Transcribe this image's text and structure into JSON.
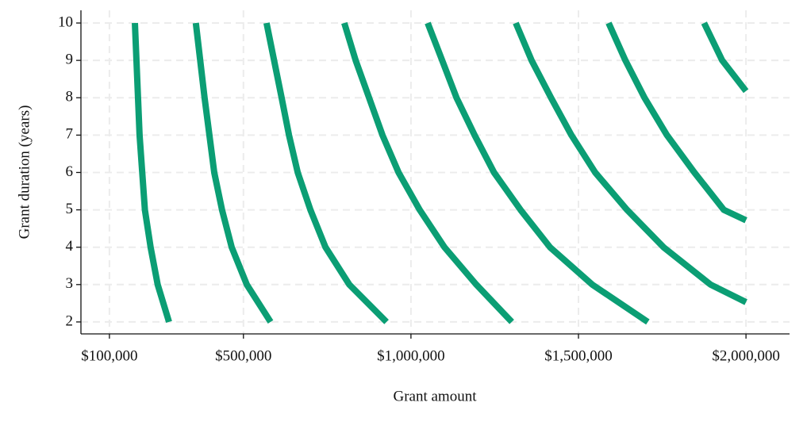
{
  "chart_data": {
    "type": "line",
    "x_label": "Grant amount",
    "y_label": "Grant duration (years)",
    "xlim": [
      15000,
      2130000
    ],
    "ylim": [
      1.68,
      10.34
    ],
    "xticks": [
      {
        "value": 100000,
        "label": "$100,000"
      },
      {
        "value": 500000,
        "label": "$500,000"
      },
      {
        "value": 1000000,
        "label": "$1,000,000"
      },
      {
        "value": 1500000,
        "label": "$1,500,000"
      },
      {
        "value": 2000000,
        "label": "$2,000,000"
      }
    ],
    "yticks": [
      2,
      3,
      4,
      5,
      6,
      7,
      8,
      9,
      10
    ],
    "grid": true,
    "series": [
      {
        "color": "#0b9e74",
        "x": [
          176000,
          190000,
          206000,
          223000,
          244000,
          278000
        ],
        "values": [
          10,
          7,
          5,
          4,
          3,
          2
        ]
      },
      {
        "color": "#0b9e74",
        "x": [
          358000,
          384000,
          413000,
          436000,
          465000,
          510000,
          581000
        ],
        "values": [
          10,
          8,
          6,
          5,
          4,
          3,
          2
        ]
      },
      {
        "color": "#0b9e74",
        "x": [
          569000,
          614000,
          636000,
          662000,
          700000,
          745000,
          816000,
          927000
        ],
        "values": [
          10,
          8,
          7,
          6,
          5,
          4,
          3,
          2
        ]
      },
      {
        "color": "#0b9e74",
        "x": [
          801000,
          835000,
          875000,
          915000,
          963000,
          1026000,
          1100000,
          1195000,
          1301000
        ],
        "values": [
          10,
          9,
          8,
          7,
          6,
          5,
          4,
          3,
          2
        ]
      },
      {
        "color": "#0b9e74",
        "x": [
          1050000,
          1093000,
          1136000,
          1190000,
          1248000,
          1327000,
          1415000,
          1541000,
          1707000
        ],
        "values": [
          10,
          9,
          8,
          7,
          6,
          5,
          4,
          3,
          2
        ]
      },
      {
        "color": "#0b9e74",
        "x": [
          1313000,
          1360000,
          1418000,
          1479000,
          1550000,
          1645000,
          1754000,
          1894000,
          2000000
        ],
        "values": [
          10,
          9,
          8,
          7,
          6,
          5,
          4,
          3,
          2.53
        ]
      },
      {
        "color": "#0b9e74",
        "x": [
          1590000,
          1640000,
          1697000,
          1764000,
          1846000,
          1934000,
          2000000
        ],
        "values": [
          10,
          9,
          8,
          7,
          6,
          5,
          4.72
        ]
      },
      {
        "color": "#0b9e74",
        "x": [
          1875000,
          1929000,
          2000000
        ],
        "values": [
          10,
          9,
          8.18
        ]
      }
    ]
  }
}
